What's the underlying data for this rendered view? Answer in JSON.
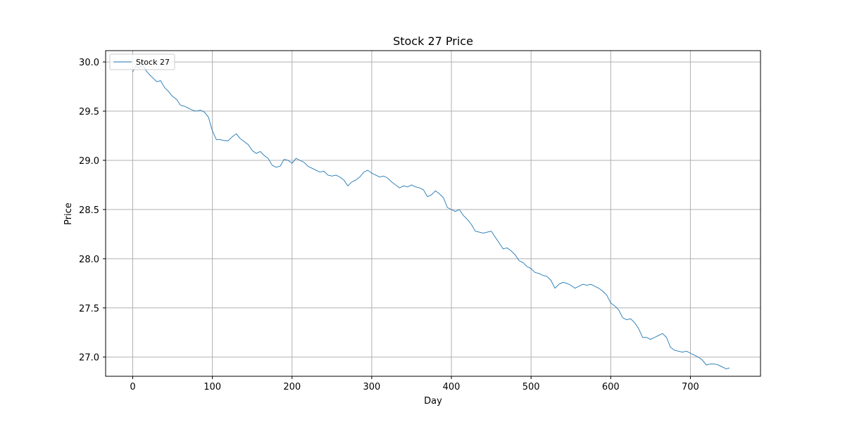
{
  "chart_data": {
    "type": "line",
    "title": "Stock 27 Price",
    "xlabel": "Day",
    "ylabel": "Price",
    "xlim": [
      -34,
      788
    ],
    "ylim": [
      26.805,
      30.115
    ],
    "xticks": [
      0,
      100,
      200,
      300,
      400,
      500,
      600,
      700
    ],
    "yticks": [
      27.0,
      27.5,
      28.0,
      28.5,
      29.0,
      29.5,
      30.0
    ],
    "xtick_labels": [
      "0",
      "100",
      "200",
      "300",
      "400",
      "500",
      "600",
      "700"
    ],
    "ytick_labels": [
      "27.0",
      "27.5",
      "28.0",
      "28.5",
      "29.0",
      "29.5",
      "30.0"
    ],
    "grid": true,
    "legend_position": "top-left",
    "series": [
      {
        "name": "Stock 27",
        "color": "#1f77b4",
        "points": [
          [
            0,
            29.9
          ],
          [
            4,
            29.96
          ],
          [
            8,
            29.94
          ],
          [
            12,
            29.98
          ],
          [
            16,
            29.92
          ],
          [
            20,
            29.88
          ],
          [
            25,
            29.84
          ],
          [
            30,
            29.8
          ],
          [
            35,
            29.81
          ],
          [
            40,
            29.74
          ],
          [
            45,
            29.7
          ],
          [
            50,
            29.65
          ],
          [
            55,
            29.62
          ],
          [
            60,
            29.56
          ],
          [
            65,
            29.55
          ],
          [
            70,
            29.53
          ],
          [
            75,
            29.51
          ],
          [
            80,
            29.5
          ],
          [
            85,
            29.51
          ],
          [
            90,
            29.49
          ],
          [
            95,
            29.44
          ],
          [
            100,
            29.3
          ],
          [
            105,
            29.21
          ],
          [
            110,
            29.21
          ],
          [
            115,
            29.2
          ],
          [
            120,
            29.2
          ],
          [
            125,
            29.24
          ],
          [
            130,
            29.27
          ],
          [
            135,
            29.22
          ],
          [
            140,
            29.19
          ],
          [
            145,
            29.16
          ],
          [
            150,
            29.1
          ],
          [
            155,
            29.07
          ],
          [
            160,
            29.09
          ],
          [
            165,
            29.05
          ],
          [
            170,
            29.02
          ],
          [
            175,
            28.95
          ],
          [
            180,
            28.93
          ],
          [
            185,
            28.94
          ],
          [
            190,
            29.01
          ],
          [
            195,
            29.0
          ],
          [
            200,
            28.97
          ],
          [
            205,
            29.02
          ],
          [
            210,
            29.0
          ],
          [
            215,
            28.98
          ],
          [
            220,
            28.94
          ],
          [
            225,
            28.92
          ],
          [
            230,
            28.9
          ],
          [
            235,
            28.88
          ],
          [
            240,
            28.89
          ],
          [
            245,
            28.85
          ],
          [
            250,
            28.84
          ],
          [
            255,
            28.85
          ],
          [
            260,
            28.83
          ],
          [
            265,
            28.8
          ],
          [
            270,
            28.74
          ],
          [
            275,
            28.78
          ],
          [
            280,
            28.8
          ],
          [
            285,
            28.83
          ],
          [
            290,
            28.88
          ],
          [
            295,
            28.9
          ],
          [
            300,
            28.87
          ],
          [
            305,
            28.85
          ],
          [
            310,
            28.83
          ],
          [
            315,
            28.84
          ],
          [
            320,
            28.82
          ],
          [
            325,
            28.78
          ],
          [
            330,
            28.75
          ],
          [
            335,
            28.72
          ],
          [
            340,
            28.74
          ],
          [
            345,
            28.73
          ],
          [
            350,
            28.75
          ],
          [
            355,
            28.73
          ],
          [
            360,
            28.72
          ],
          [
            365,
            28.7
          ],
          [
            370,
            28.63
          ],
          [
            375,
            28.65
          ],
          [
            380,
            28.69
          ],
          [
            385,
            28.66
          ],
          [
            390,
            28.62
          ],
          [
            395,
            28.52
          ],
          [
            400,
            28.5
          ],
          [
            405,
            28.48
          ],
          [
            410,
            28.5
          ],
          [
            415,
            28.44
          ],
          [
            420,
            28.4
          ],
          [
            425,
            28.35
          ],
          [
            430,
            28.28
          ],
          [
            435,
            28.27
          ],
          [
            440,
            28.26
          ],
          [
            445,
            28.27
          ],
          [
            450,
            28.28
          ],
          [
            455,
            28.22
          ],
          [
            460,
            28.16
          ],
          [
            465,
            28.1
          ],
          [
            470,
            28.11
          ],
          [
            475,
            28.08
          ],
          [
            480,
            28.04
          ],
          [
            485,
            27.98
          ],
          [
            490,
            27.96
          ],
          [
            495,
            27.92
          ],
          [
            500,
            27.9
          ],
          [
            505,
            27.86
          ],
          [
            510,
            27.85
          ],
          [
            515,
            27.83
          ],
          [
            520,
            27.82
          ],
          [
            525,
            27.78
          ],
          [
            530,
            27.7
          ],
          [
            535,
            27.74
          ],
          [
            540,
            27.76
          ],
          [
            545,
            27.75
          ],
          [
            550,
            27.73
          ],
          [
            555,
            27.7
          ],
          [
            560,
            27.72
          ],
          [
            565,
            27.74
          ],
          [
            570,
            27.73
          ],
          [
            575,
            27.74
          ],
          [
            580,
            27.72
          ],
          [
            585,
            27.7
          ],
          [
            590,
            27.67
          ],
          [
            595,
            27.63
          ],
          [
            600,
            27.55
          ],
          [
            605,
            27.52
          ],
          [
            610,
            27.48
          ],
          [
            615,
            27.4
          ],
          [
            620,
            27.38
          ],
          [
            625,
            27.39
          ],
          [
            630,
            27.35
          ],
          [
            635,
            27.29
          ],
          [
            640,
            27.2
          ],
          [
            645,
            27.2
          ],
          [
            650,
            27.18
          ],
          [
            655,
            27.2
          ],
          [
            660,
            27.22
          ],
          [
            665,
            27.24
          ],
          [
            670,
            27.2
          ],
          [
            675,
            27.1
          ],
          [
            680,
            27.07
          ],
          [
            685,
            27.06
          ],
          [
            690,
            27.05
          ],
          [
            695,
            27.06
          ],
          [
            700,
            27.04
          ],
          [
            705,
            27.02
          ],
          [
            710,
            27.0
          ],
          [
            715,
            26.97
          ],
          [
            720,
            26.92
          ],
          [
            725,
            26.93
          ],
          [
            730,
            26.93
          ],
          [
            735,
            26.92
          ],
          [
            740,
            26.9
          ],
          [
            745,
            26.88
          ],
          [
            749,
            26.89
          ]
        ]
      }
    ]
  }
}
